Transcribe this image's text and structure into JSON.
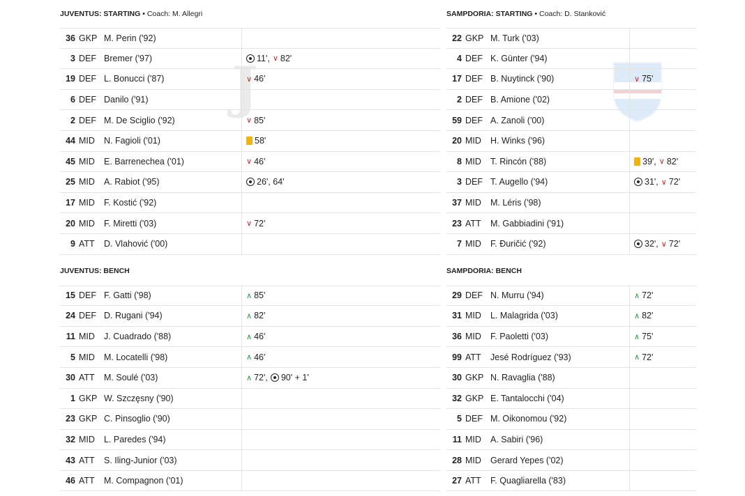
{
  "juventus": {
    "starting_title": "JUVENTUS: STARTING",
    "coach": "Coach: M. Allegri",
    "bench_title": "JUVENTUS: BENCH",
    "starting": [
      {
        "num": "36",
        "pos": "GKP",
        "name": "M. Perin ('92)",
        "events": []
      },
      {
        "num": "3",
        "pos": "DEF",
        "name": "Bremer ('97)",
        "events": [
          {
            "t": "goal",
            "v": "11',"
          },
          {
            "t": "out",
            "v": "82'"
          }
        ]
      },
      {
        "num": "19",
        "pos": "DEF",
        "name": "L. Bonucci ('87)",
        "events": [
          {
            "t": "out",
            "v": "46'"
          }
        ]
      },
      {
        "num": "6",
        "pos": "DEF",
        "name": "Danilo ('91)",
        "events": []
      },
      {
        "num": "2",
        "pos": "DEF",
        "name": "M. De Sciglio ('92)",
        "events": [
          {
            "t": "out",
            "v": "85'"
          }
        ]
      },
      {
        "num": "44",
        "pos": "MID",
        "name": "N. Fagioli ('01)",
        "events": [
          {
            "t": "yellow",
            "v": "58'"
          }
        ]
      },
      {
        "num": "45",
        "pos": "MID",
        "name": "E. Barrenechea ('01)",
        "events": [
          {
            "t": "out",
            "v": "46'"
          }
        ]
      },
      {
        "num": "25",
        "pos": "MID",
        "name": "A. Rabiot ('95)",
        "events": [
          {
            "t": "goal",
            "v": "26', 64'"
          }
        ]
      },
      {
        "num": "17",
        "pos": "MID",
        "name": "F. Kostić ('92)",
        "events": []
      },
      {
        "num": "20",
        "pos": "MID",
        "name": "F. Miretti ('03)",
        "events": [
          {
            "t": "out",
            "v": "72'"
          }
        ]
      },
      {
        "num": "9",
        "pos": "ATT",
        "name": "D. Vlahović ('00)",
        "events": []
      }
    ],
    "bench": [
      {
        "num": "15",
        "pos": "DEF",
        "name": "F. Gatti ('98)",
        "events": [
          {
            "t": "in",
            "v": "85'"
          }
        ]
      },
      {
        "num": "24",
        "pos": "DEF",
        "name": "D. Rugani ('94)",
        "events": [
          {
            "t": "in",
            "v": "82'"
          }
        ]
      },
      {
        "num": "11",
        "pos": "MID",
        "name": "J. Cuadrado ('88)",
        "events": [
          {
            "t": "in",
            "v": "46'"
          }
        ]
      },
      {
        "num": "5",
        "pos": "MID",
        "name": "M. Locatelli ('98)",
        "events": [
          {
            "t": "in",
            "v": "46'"
          }
        ]
      },
      {
        "num": "30",
        "pos": "ATT",
        "name": "M. Soulé ('03)",
        "events": [
          {
            "t": "in",
            "v": "72',"
          },
          {
            "t": "goal",
            "v": "90' + 1'"
          }
        ]
      },
      {
        "num": "1",
        "pos": "GKP",
        "name": "W. Szczęsny ('90)",
        "events": []
      },
      {
        "num": "23",
        "pos": "GKP",
        "name": "C. Pinsoglio ('90)",
        "events": []
      },
      {
        "num": "32",
        "pos": "MID",
        "name": "L. Paredes ('94)",
        "events": []
      },
      {
        "num": "43",
        "pos": "ATT",
        "name": "S. Iling-Junior ('03)",
        "events": []
      },
      {
        "num": "46",
        "pos": "ATT",
        "name": "M. Compagnon ('01)",
        "events": []
      }
    ]
  },
  "sampdoria": {
    "starting_title": "SAMPDORIA: STARTING",
    "coach": "Coach: D. Stanković",
    "bench_title": "SAMPDORIA: BENCH",
    "starting": [
      {
        "num": "22",
        "pos": "GKP",
        "name": "M. Turk ('03)",
        "events": []
      },
      {
        "num": "4",
        "pos": "DEF",
        "name": "K. Günter ('94)",
        "events": []
      },
      {
        "num": "17",
        "pos": "DEF",
        "name": "B. Nuytinck ('90)",
        "events": [
          {
            "t": "out",
            "v": "75'"
          }
        ]
      },
      {
        "num": "2",
        "pos": "DEF",
        "name": "B. Amione ('02)",
        "events": []
      },
      {
        "num": "59",
        "pos": "DEF",
        "name": "A. Zanoli ('00)",
        "events": []
      },
      {
        "num": "20",
        "pos": "MID",
        "name": "H. Winks ('96)",
        "events": []
      },
      {
        "num": "8",
        "pos": "MID",
        "name": "T. Rincón ('88)",
        "events": [
          {
            "t": "yellow",
            "v": "39',"
          },
          {
            "t": "out",
            "v": "82'"
          }
        ]
      },
      {
        "num": "3",
        "pos": "DEF",
        "name": "T. Augello ('94)",
        "events": [
          {
            "t": "goal",
            "v": "31',"
          },
          {
            "t": "out",
            "v": "72'"
          }
        ]
      },
      {
        "num": "37",
        "pos": "MID",
        "name": "M. Léris ('98)",
        "events": []
      },
      {
        "num": "23",
        "pos": "ATT",
        "name": "M. Gabbiadini ('91)",
        "events": []
      },
      {
        "num": "7",
        "pos": "MID",
        "name": "F. Đuričić ('92)",
        "events": [
          {
            "t": "goal",
            "v": "32',"
          },
          {
            "t": "out",
            "v": "72'"
          }
        ]
      }
    ],
    "bench": [
      {
        "num": "29",
        "pos": "DEF",
        "name": "N. Murru ('94)",
        "events": [
          {
            "t": "in",
            "v": "72'"
          }
        ]
      },
      {
        "num": "31",
        "pos": "MID",
        "name": "L. Malagrida ('03)",
        "events": [
          {
            "t": "in",
            "v": "82'"
          }
        ]
      },
      {
        "num": "36",
        "pos": "MID",
        "name": "F. Paoletti ('03)",
        "events": [
          {
            "t": "in",
            "v": "75'"
          }
        ]
      },
      {
        "num": "99",
        "pos": "ATT",
        "name": "Jesé Rodríguez ('93)",
        "events": [
          {
            "t": "in",
            "v": "72'"
          }
        ]
      },
      {
        "num": "30",
        "pos": "GKP",
        "name": "N. Ravaglia ('88)",
        "events": []
      },
      {
        "num": "32",
        "pos": "GKP",
        "name": "E. Tantalocchi ('04)",
        "events": []
      },
      {
        "num": "5",
        "pos": "DEF",
        "name": "M. Oikonomou ('92)",
        "events": []
      },
      {
        "num": "11",
        "pos": "MID",
        "name": "A. Sabiri ('96)",
        "events": []
      },
      {
        "num": "28",
        "pos": "MID",
        "name": "Gerard Yepes ('02)",
        "events": []
      },
      {
        "num": "27",
        "pos": "ATT",
        "name": "F. Quagliarella ('83)",
        "events": []
      }
    ]
  },
  "colors": {
    "sub_out": "#d9232a",
    "sub_in": "#1e9b3a",
    "yellow_card": "#f4b400"
  },
  "icons": {
    "goal": "football-icon",
    "yellow": "yellow-card-icon",
    "out": "sub-out-arrow-icon",
    "in": "sub-in-arrow-icon"
  }
}
